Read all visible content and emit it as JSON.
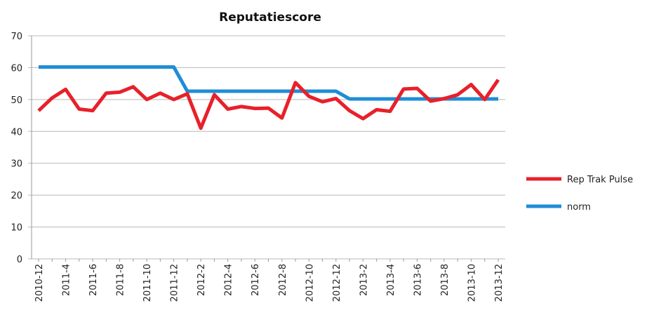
{
  "chart_data": {
    "type": "line",
    "title": "Reputatiescore",
    "categories": [
      "2010-12",
      null,
      "2011-4",
      null,
      "2011-6",
      null,
      "2011-8",
      null,
      "2011-10",
      null,
      "2011-12",
      null,
      "2012-2",
      null,
      "2012-4",
      null,
      "2012-6",
      null,
      "2012-8",
      null,
      "2012-10",
      null,
      "2012-12",
      null,
      "2013-2",
      null,
      "2013-4",
      null,
      "2013-6",
      null,
      "2013-8",
      null,
      "2013-10",
      null,
      "2013-12"
    ],
    "series": [
      {
        "name": "Rep Trak Pulse",
        "color": "#e8202a",
        "values": [
          46.5,
          50.5,
          53.2,
          47,
          46.5,
          52,
          52.3,
          54,
          50,
          52,
          50,
          51.8,
          41,
          51.5,
          47,
          47.8,
          47.2,
          47.3,
          44.2,
          55.3,
          51,
          49.3,
          50.3,
          46.5,
          44,
          46.8,
          46.3,
          53.3,
          53.5,
          49.5,
          50.3,
          51.5,
          54.7,
          50,
          56.2
        ]
      },
      {
        "name": "norm",
        "color": "#1f8dd6",
        "values": [
          60.2,
          60.2,
          60.2,
          60.2,
          60.2,
          60.2,
          60.2,
          60.2,
          60.2,
          60.2,
          60.2,
          52.6,
          52.6,
          52.6,
          52.6,
          52.6,
          52.6,
          52.6,
          52.6,
          52.6,
          52.6,
          52.6,
          52.6,
          50.2,
          50.2,
          50.2,
          50.2,
          50.2,
          50.2,
          50.2,
          50.2,
          50.2,
          50.2,
          50.2,
          50.2
        ]
      }
    ],
    "ylim": [
      0,
      70
    ],
    "yticks": [
      0,
      10,
      20,
      30,
      40,
      50,
      60,
      70
    ],
    "grid": true,
    "legend": "right"
  }
}
